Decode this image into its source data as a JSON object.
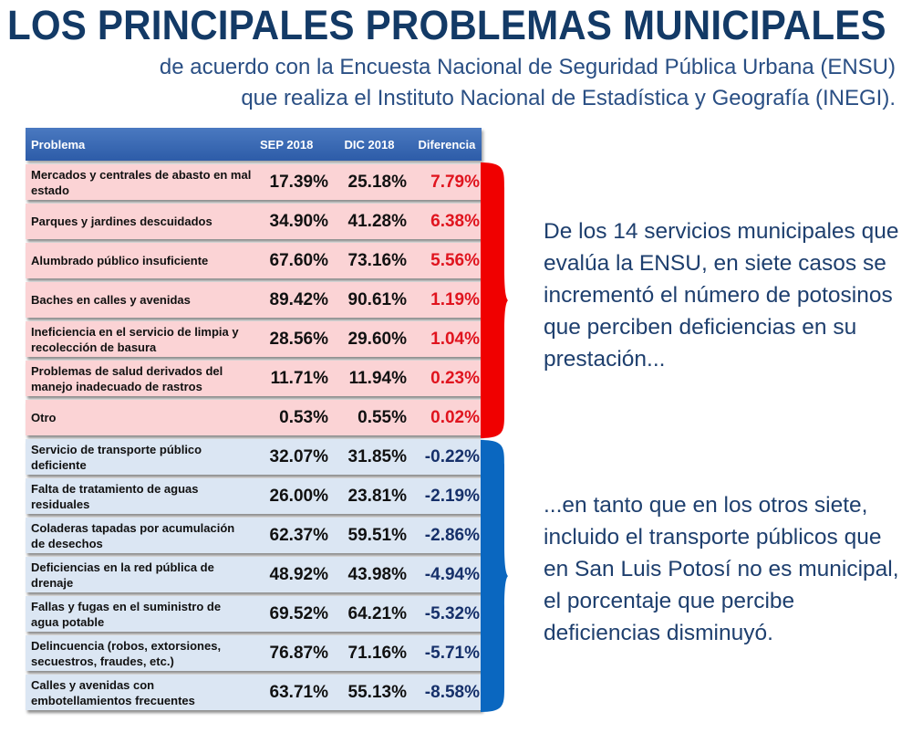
{
  "header": {
    "title": "LOS PRINCIPALES PROBLEMAS MUNICIPALES",
    "subtitle_line1": "de acuerdo con la Encuesta Nacional de Seguridad Pública Urbana (ENSU)",
    "subtitle_line2": "que realiza el Instituto Nacional de Estadística y Geografía (INEGI)."
  },
  "table": {
    "columns": [
      "Problema",
      "SEP 2018",
      "DIC 2018",
      "Diferencia"
    ],
    "rows": [
      {
        "problema": "Mercados y centrales de abasto en mal estado",
        "sep": "17.39%",
        "dic": "25.18%",
        "dif": "7.79%"
      },
      {
        "problema": "Parques y jardines descuidados",
        "sep": "34.90%",
        "dic": "41.28%",
        "dif": "6.38%"
      },
      {
        "problema": "Alumbrado público insuficiente",
        "sep": "67.60%",
        "dic": "73.16%",
        "dif": "5.56%"
      },
      {
        "problema": "Baches en calles y avenidas",
        "sep": "89.42%",
        "dic": "90.61%",
        "dif": "1.19%"
      },
      {
        "problema": "Ineficiencia en el servicio de limpia y recolección de basura",
        "sep": "28.56%",
        "dic": "29.60%",
        "dif": "1.04%"
      },
      {
        "problema": "Problemas de salud derivados del manejo inadecuado de rastros",
        "sep": "11.71%",
        "dic": "11.94%",
        "dif": "0.23%"
      },
      {
        "problema": "Otro",
        "sep": "0.53%",
        "dic": "0.55%",
        "dif": "0.02%"
      },
      {
        "problema": "Servicio de transporte público deficiente",
        "sep": "32.07%",
        "dic": "31.85%",
        "dif": "-0.22%"
      },
      {
        "problema": "Falta de tratamiento de aguas residuales",
        "sep": "26.00%",
        "dic": "23.81%",
        "dif": "-2.19%"
      },
      {
        "problema": "Coladeras tapadas por acumulación de desechos",
        "sep": "62.37%",
        "dic": "59.51%",
        "dif": "-2.86%"
      },
      {
        "problema": "Deficiencias en la red pública de drenaje",
        "sep": "48.92%",
        "dic": "43.98%",
        "dif": "-4.94%"
      },
      {
        "problema": "Fallas y fugas en el suministro de agua potable",
        "sep": "69.52%",
        "dic": "64.21%",
        "dif": "-5.32%"
      },
      {
        "problema": "Delincuencia (robos, extorsiones, secuestros, fraudes, etc.)",
        "sep": "76.87%",
        "dic": "71.16%",
        "dif": "-5.71%"
      },
      {
        "problema": "Calles y avenidas con embotellamientos frecuentes",
        "sep": "63.71%",
        "dic": "55.13%",
        "dif": "-8.58%"
      }
    ]
  },
  "notes": {
    "increase": "De los 14 servicios municipales que evalúa la ENSU, en siete casos se incrementó el número de potosinos que perciben deficiencias en su prestación...",
    "decrease": "...en tanto que en los otros siete, incluido el transporte públicos que en San Luis Potosí no es municipal, el porcentaje que percibe deficiencias disminuyó."
  },
  "colors": {
    "title": "#133a66",
    "increase_row": "#fbd3d5",
    "decrease_row": "#dbe6f3",
    "increase_value": "#e0141e",
    "decrease_value": "#16306a",
    "increase_brace": "#f00000",
    "decrease_brace": "#0a67c0"
  }
}
